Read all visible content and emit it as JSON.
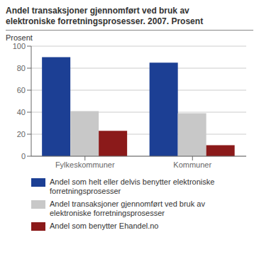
{
  "chart_data": {
    "type": "bar",
    "title": "Andel transaksjoner gjennomført ved bruk av\nelektroniske forretningsprosesser. 2007. Prosent",
    "ylabel": "Prosent",
    "categories": [
      "Fylkeskommuner",
      "Kommuner"
    ],
    "series": [
      {
        "name": "Andel som helt eller delvis benytter elektroniske\nforretningsprosesser",
        "color": "#1c3f94",
        "values": [
          90,
          85
        ]
      },
      {
        "name": "Andel transaksjoner gjennomført ved bruk av\nelektroniske forretningsprosesser",
        "color": "#c8c8c8",
        "values": [
          41,
          39
        ]
      },
      {
        "name": "Andel som benytter Ehandel.no",
        "color": "#8b1a1a",
        "values": [
          23,
          10
        ]
      }
    ],
    "ylim": [
      0,
      100
    ],
    "yticks": [
      0,
      20,
      40,
      60,
      80,
      100
    ],
    "grid": true,
    "legend": "bottom"
  }
}
